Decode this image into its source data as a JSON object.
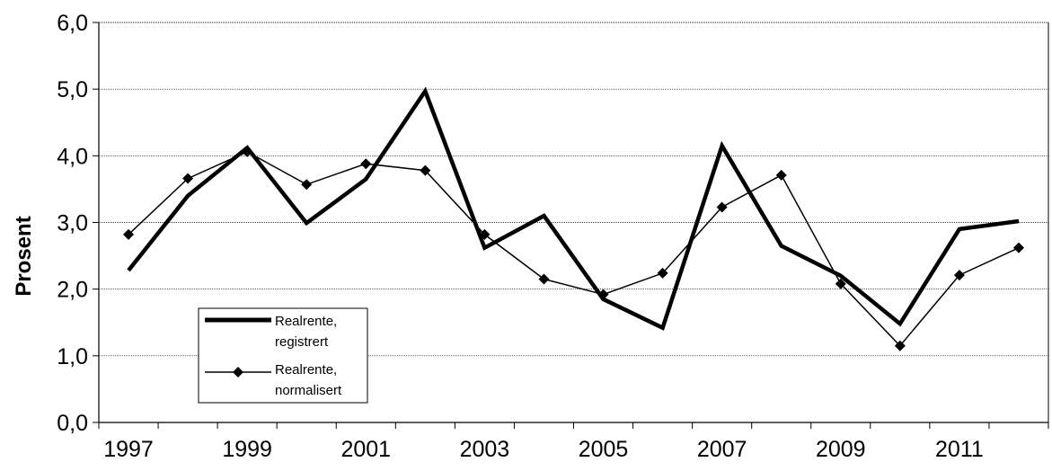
{
  "chart_data": {
    "type": "line",
    "title": "",
    "xlabel": "",
    "ylabel": "Prosent",
    "ylim": [
      0,
      6
    ],
    "yticks": [
      "0,0",
      "1,0",
      "2,0",
      "3,0",
      "4,0",
      "5,0",
      "6,0"
    ],
    "xticks": [
      "1997",
      "1999",
      "2001",
      "2003",
      "2005",
      "2007",
      "2009",
      "2011"
    ],
    "x": [
      1997,
      1998,
      1999,
      2000,
      2001,
      2002,
      2003,
      2004,
      2005,
      2006,
      2007,
      2008,
      2009,
      2010,
      2011,
      2012
    ],
    "grid": "horizontal",
    "legend_position": "lower-left",
    "series": [
      {
        "name": "Realrente, registrert",
        "color": "#000000",
        "marker": "none",
        "values": [
          2.28,
          3.4,
          4.12,
          2.99,
          3.65,
          4.97,
          2.62,
          3.1,
          1.85,
          1.42,
          4.15,
          2.65,
          2.2,
          1.48,
          2.9,
          3.02
        ]
      },
      {
        "name": "Realrente, normalisert",
        "color": "#000000",
        "marker": "diamond",
        "values": [
          2.82,
          3.66,
          4.06,
          3.57,
          3.88,
          3.78,
          2.82,
          2.15,
          1.92,
          2.24,
          3.23,
          3.71,
          2.08,
          1.15,
          2.21,
          2.62
        ]
      }
    ],
    "legend": {
      "items": [
        {
          "line1": "Realrente,",
          "line2": "registrert"
        },
        {
          "line1": "Realrente,",
          "line2": "normalisert"
        }
      ]
    }
  }
}
